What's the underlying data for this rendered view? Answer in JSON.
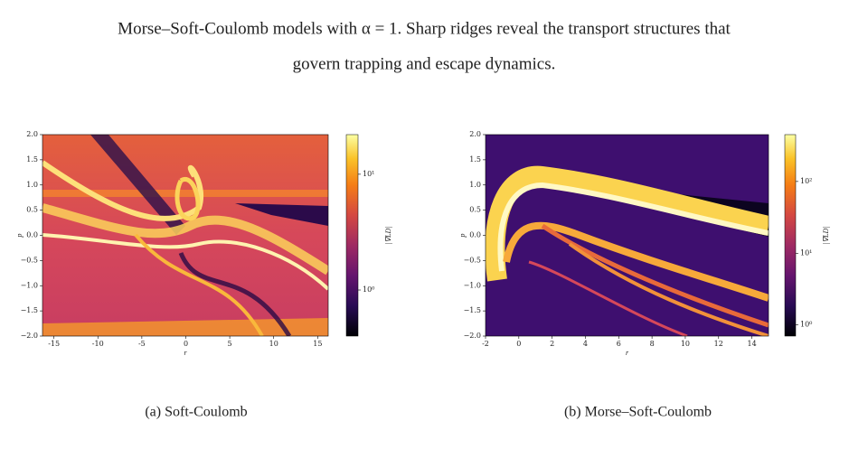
{
  "caption": {
    "lines": [
      "Morse–Soft-Coulomb models with α = 1. Sharp ridges reveal the transport structures that",
      "govern trapping and escape dynamics."
    ]
  },
  "chart_data": [
    {
      "type": "heatmap",
      "xlabel": "r",
      "ylabel": "p",
      "xlim": [
        -16.3,
        16.2
      ],
      "ylim": [
        -2,
        2
      ],
      "xticks": [
        -15,
        -10,
        -5,
        0,
        5,
        10,
        15
      ],
      "yticks": [
        {
          "value": -2,
          "label": "−2.0"
        },
        {
          "value": -1.5,
          "label": "−1.5"
        },
        {
          "value": -1,
          "label": "−1.0"
        },
        {
          "value": -0.5,
          "label": "−0.5"
        },
        {
          "value": 0,
          "label": "0.0"
        },
        {
          "value": 0.5,
          "label": "0.5"
        },
        {
          "value": 1,
          "label": "1.0"
        },
        {
          "value": 1.5,
          "label": "1.5"
        },
        {
          "value": 2,
          "label": "2.0"
        }
      ],
      "colorbar": {
        "label": "|∇LD|",
        "log": true,
        "lim": [
          0.4,
          22
        ],
        "ticks": [
          {
            "value": 1,
            "label": "10⁰"
          },
          {
            "value": 10,
            "label": "10¹"
          }
        ]
      },
      "subcaption": "(a) Soft-Coulomb"
    },
    {
      "type": "heatmap",
      "xlabel": "r",
      "ylabel": "p",
      "xlim": [
        -2,
        15
      ],
      "ylim": [
        -2,
        2
      ],
      "xticks": [
        -2,
        0,
        2,
        4,
        6,
        8,
        10,
        12,
        14
      ],
      "yticks": [
        {
          "value": -2,
          "label": "−2.0"
        },
        {
          "value": -1.5,
          "label": "−1.5"
        },
        {
          "value": -1,
          "label": "−1.0"
        },
        {
          "value": -0.5,
          "label": "−0.5"
        },
        {
          "value": 0,
          "label": "0.0"
        },
        {
          "value": 0.5,
          "label": "0.5"
        },
        {
          "value": 1,
          "label": "1.0"
        },
        {
          "value": 1.5,
          "label": "1.5"
        },
        {
          "value": 2,
          "label": "2.0"
        }
      ],
      "colorbar": {
        "label": "|∇LD|",
        "log": true,
        "lim": [
          0.7,
          450
        ],
        "ticks": [
          {
            "value": 1,
            "label": "10⁰"
          },
          {
            "value": 10,
            "label": "10¹"
          },
          {
            "value": 100,
            "label": "10²"
          }
        ]
      },
      "subcaption": "(b) Morse–Soft-Coulomb"
    }
  ]
}
